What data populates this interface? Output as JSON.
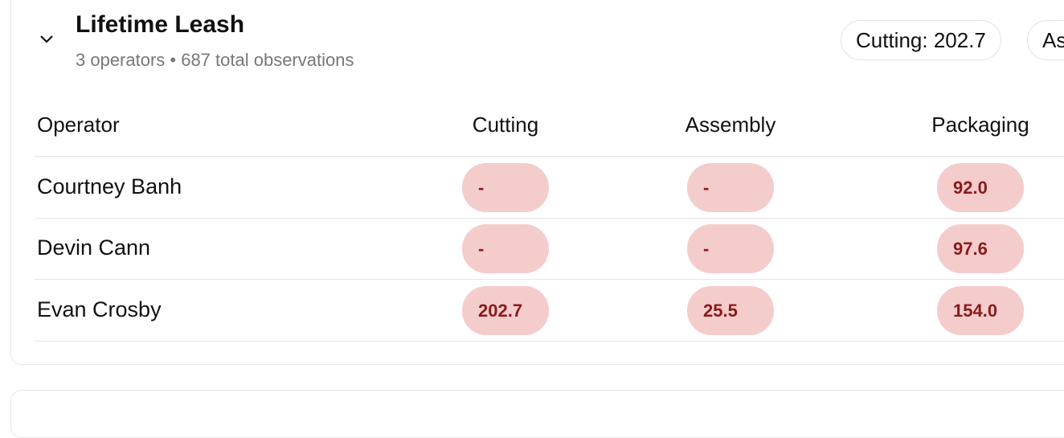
{
  "header": {
    "title": "Lifetime Leash",
    "subtitle": "3 operators • 687 total observations"
  },
  "chips": [
    "Cutting: 202.7",
    "As"
  ],
  "table": {
    "columns": [
      "Operator",
      "Cutting",
      "Assembly",
      "Packaging"
    ],
    "rows": [
      [
        "Courtney Banh",
        "-",
        "-",
        "92.0"
      ],
      [
        "Devin Cann",
        "-",
        "-",
        "97.6"
      ],
      [
        "Evan Crosby",
        "202.7",
        "25.5",
        "154.0"
      ]
    ]
  }
}
